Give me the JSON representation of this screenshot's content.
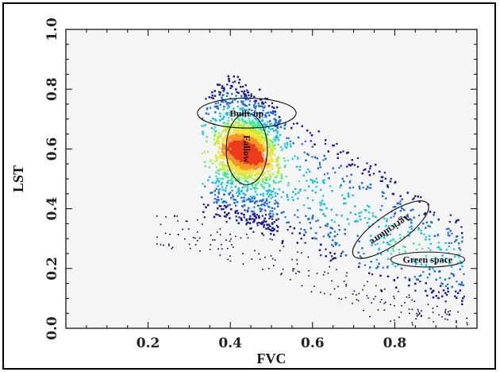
{
  "chart_data": {
    "type": "scatter",
    "title": "",
    "xlabel": "FVC",
    "ylabel": "LST",
    "xlim": [
      0.0,
      1.0
    ],
    "ylim": [
      0.0,
      1.0
    ],
    "x_ticks": [
      "0.2",
      "0.4",
      "0.6",
      "0.8"
    ],
    "y_ticks": [
      "0.0",
      "0.2",
      "0.4",
      "0.6",
      "0.8",
      "1.0"
    ],
    "grid": false,
    "plot_background": "#f5f5f5",
    "colormap": [
      "#000033",
      "#1a1aa0",
      "#1e6fe0",
      "#19c0ee",
      "#3ee89a",
      "#b6f03c",
      "#f6e23a",
      "#f79628",
      "#ee3a1c"
    ],
    "cloud_shape": {
      "upper_envelope": [
        [
          0.34,
          0.78
        ],
        [
          0.4,
          0.84
        ],
        [
          0.48,
          0.78
        ],
        [
          0.6,
          0.66
        ],
        [
          0.72,
          0.56
        ],
        [
          0.84,
          0.46
        ],
        [
          0.96,
          0.36
        ]
      ],
      "lower_envelope": [
        [
          0.3,
          0.4
        ],
        [
          0.36,
          0.38
        ],
        [
          0.5,
          0.33
        ],
        [
          0.62,
          0.24
        ],
        [
          0.74,
          0.18
        ],
        [
          0.86,
          0.12
        ],
        [
          0.94,
          0.08
        ]
      ],
      "density_peak": [
        0.44,
        0.6
      ]
    },
    "regions": [
      {
        "label": "Built-up",
        "center": [
          0.44,
          0.72
        ],
        "rx": 0.12,
        "ry": 0.05,
        "angle": 0
      },
      {
        "label": "Fallow",
        "center": [
          0.44,
          0.6
        ],
        "rx": 0.05,
        "ry": 0.12,
        "angle": 0
      },
      {
        "label": "Agriculture",
        "center": [
          0.79,
          0.33
        ],
        "rx": 0.11,
        "ry": 0.05,
        "angle": -35
      },
      {
        "label": "Green space",
        "center": [
          0.88,
          0.23
        ],
        "rx": 0.09,
        "ry": 0.025,
        "angle": 0
      }
    ]
  }
}
